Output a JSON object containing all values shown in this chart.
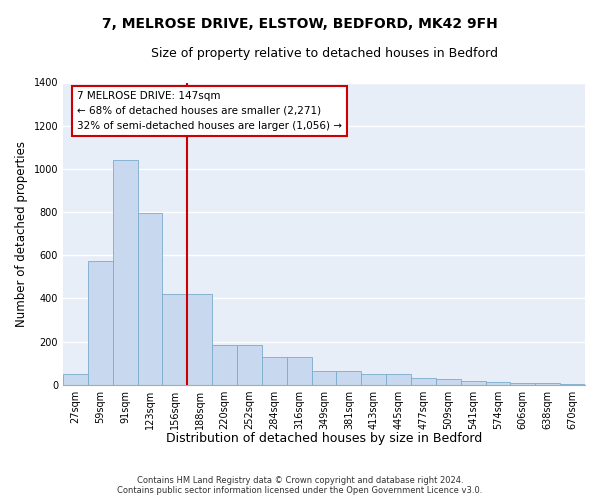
{
  "title": "7, MELROSE DRIVE, ELSTOW, BEDFORD, MK42 9FH",
  "subtitle": "Size of property relative to detached houses in Bedford",
  "xlabel": "Distribution of detached houses by size in Bedford",
  "ylabel": "Number of detached properties",
  "categories": [
    "27sqm",
    "59sqm",
    "91sqm",
    "123sqm",
    "156sqm",
    "188sqm",
    "220sqm",
    "252sqm",
    "284sqm",
    "316sqm",
    "349sqm",
    "381sqm",
    "413sqm",
    "445sqm",
    "477sqm",
    "509sqm",
    "541sqm",
    "574sqm",
    "606sqm",
    "638sqm",
    "670sqm"
  ],
  "values": [
    50,
    575,
    1040,
    795,
    420,
    420,
    185,
    185,
    130,
    130,
    65,
    65,
    50,
    50,
    30,
    25,
    20,
    15,
    10,
    10,
    5
  ],
  "bar_color": "#c8d8ee",
  "bar_edge_color": "#7aabcc",
  "background_color": "#e8eef8",
  "grid_color": "#ffffff",
  "red_line_x": 4.5,
  "ylim": [
    0,
    1400
  ],
  "yticks": [
    0,
    200,
    400,
    600,
    800,
    1000,
    1200,
    1400
  ],
  "annotation_text": "7 MELROSE DRIVE: 147sqm\n← 68% of detached houses are smaller (2,271)\n32% of semi-detached houses are larger (1,056) →",
  "annotation_box_color": "#ffffff",
  "annotation_border_color": "#cc0000",
  "footer_line1": "Contains HM Land Registry data © Crown copyright and database right 2024.",
  "footer_line2": "Contains public sector information licensed under the Open Government Licence v3.0.",
  "title_fontsize": 10,
  "subtitle_fontsize": 9,
  "tick_fontsize": 7,
  "ylabel_fontsize": 8.5,
  "xlabel_fontsize": 9
}
